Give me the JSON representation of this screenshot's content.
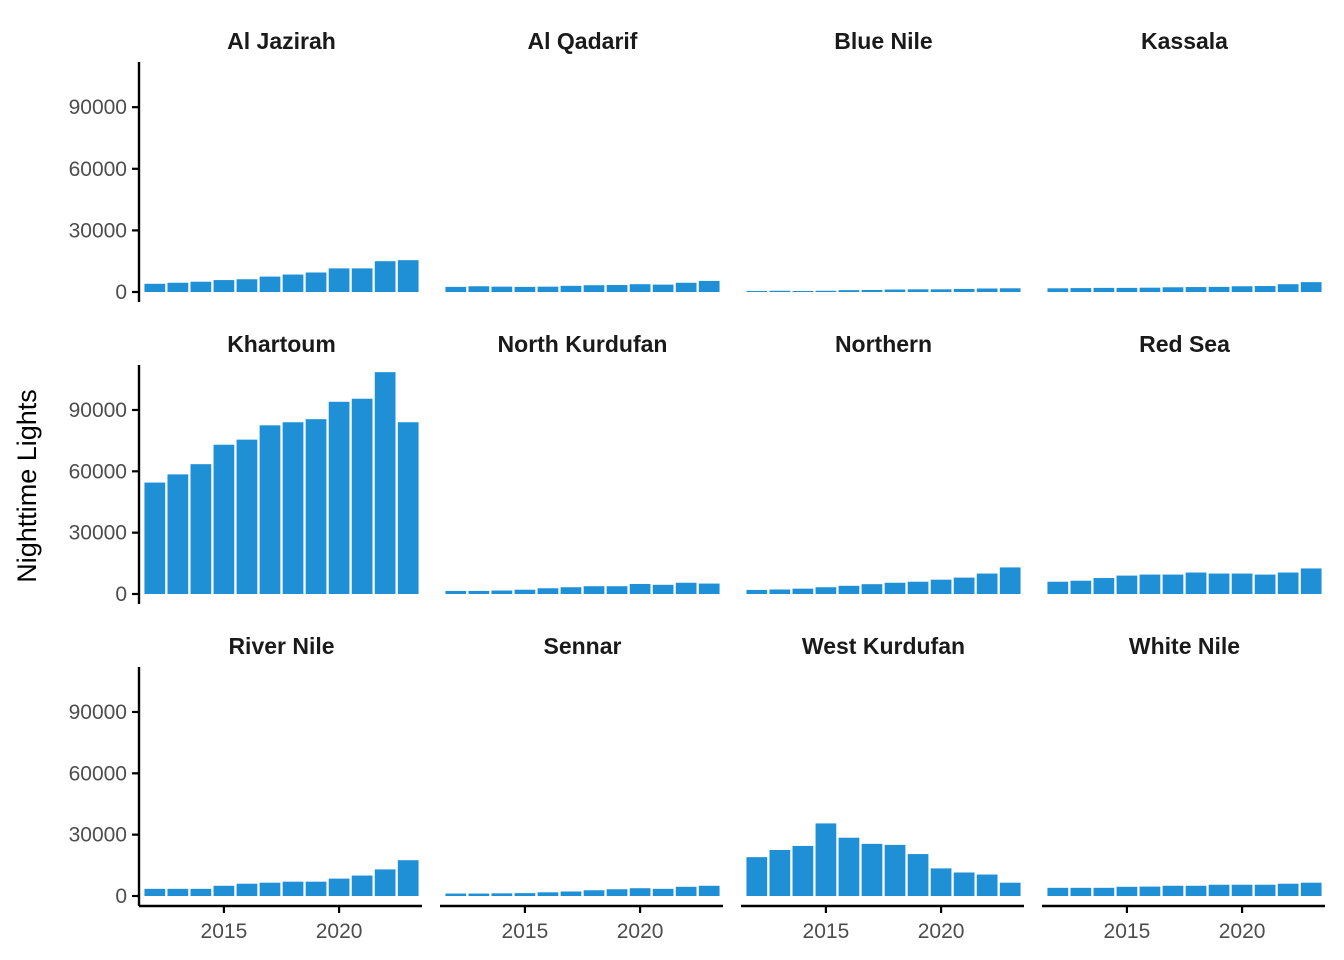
{
  "chart_data": {
    "type": "bar",
    "layout": "facet-grid",
    "ylabel": "Nighttime Lights",
    "xlabel": "",
    "bar_color": "#1f8fd6",
    "x": [
      2012,
      2013,
      2014,
      2015,
      2016,
      2017,
      2018,
      2019,
      2020,
      2021,
      2022,
      2023
    ],
    "x_ticks": [
      2015,
      2020
    ],
    "x_tick_labels": [
      "2015",
      "2020"
    ],
    "xlim": [
      2011.4,
      2023.6
    ],
    "ylim": [
      0,
      112000
    ],
    "y_ticks": [
      0,
      30000,
      60000,
      90000
    ],
    "y_tick_labels": [
      "0",
      "30000",
      "60000",
      "90000"
    ],
    "grid": false,
    "facets": [
      {
        "name": "Al Jazirah",
        "values": [
          4000,
          4500,
          5000,
          5800,
          6200,
          7500,
          8500,
          9500,
          11500,
          11500,
          15000,
          15500
        ]
      },
      {
        "name": "Al Qadarif",
        "values": [
          2500,
          2800,
          2600,
          2500,
          2600,
          3000,
          3300,
          3400,
          3800,
          3600,
          4500,
          5400
        ]
      },
      {
        "name": "Blue Nile",
        "values": [
          500,
          600,
          500,
          600,
          900,
          1000,
          1200,
          1300,
          1300,
          1500,
          1700,
          1800
        ]
      },
      {
        "name": "Kassala",
        "values": [
          1800,
          1900,
          2000,
          2000,
          2100,
          2300,
          2400,
          2500,
          2800,
          2900,
          3800,
          4800
        ]
      },
      {
        "name": "Khartoum",
        "values": [
          54500,
          58500,
          63500,
          73000,
          75500,
          82500,
          84000,
          85500,
          94000,
          95500,
          108500,
          84000
        ]
      },
      {
        "name": "North Kurdufan",
        "values": [
          1500,
          1500,
          1700,
          2100,
          2800,
          3300,
          3800,
          3800,
          4900,
          4500,
          5500,
          5100
        ]
      },
      {
        "name": "Northern",
        "values": [
          2000,
          2200,
          2600,
          3300,
          4000,
          4800,
          5500,
          6000,
          7000,
          8000,
          10000,
          13000
        ]
      },
      {
        "name": "Red Sea",
        "values": [
          6000,
          6500,
          7800,
          9000,
          9500,
          9500,
          10500,
          10000,
          10000,
          9500,
          10500,
          12500
        ]
      },
      {
        "name": "River Nile",
        "values": [
          3500,
          3500,
          3500,
          5000,
          6000,
          6500,
          7000,
          7000,
          8500,
          10000,
          13000,
          17500
        ]
      },
      {
        "name": "Sennar",
        "values": [
          1200,
          1200,
          1300,
          1400,
          1800,
          2200,
          2800,
          3300,
          3800,
          3500,
          4500,
          5000
        ]
      },
      {
        "name": "West Kurdufan",
        "values": [
          19000,
          22500,
          24500,
          35500,
          28500,
          25500,
          25000,
          20500,
          13500,
          11500,
          10500,
          6500
        ]
      },
      {
        "name": "White Nile",
        "values": [
          4000,
          4000,
          4000,
          4500,
          4600,
          5000,
          5000,
          5500,
          5500,
          5500,
          6000,
          6500
        ]
      }
    ]
  }
}
